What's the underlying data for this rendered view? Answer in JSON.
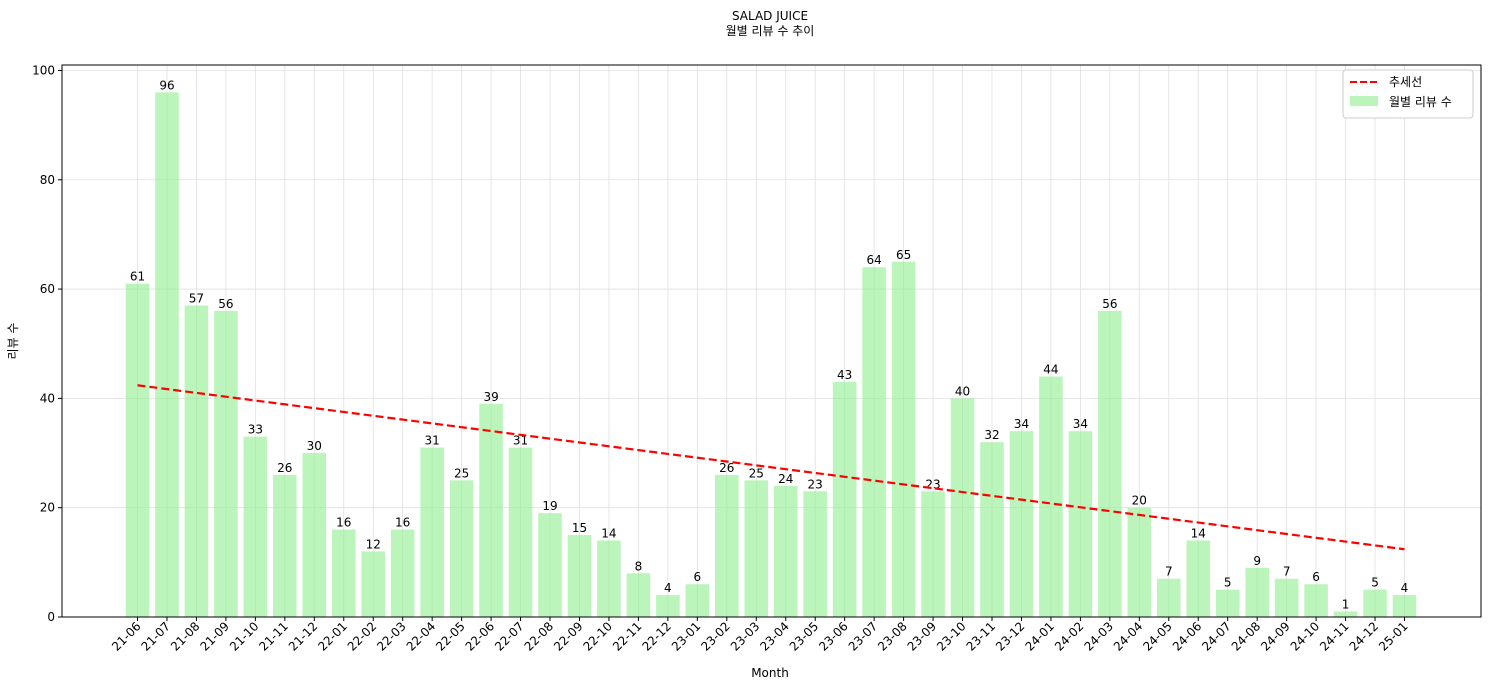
{
  "title_line1": "SALAD JUICE",
  "title_line2": "월별 리뷰 수 추이",
  "legend": {
    "trend_label": "추세선",
    "bar_label": "월별 리뷰 수",
    "placement": "top-right"
  },
  "colors": {
    "bar": "#90ee90",
    "trend": "#ff0000",
    "grid": "#e0e0e0"
  },
  "chart_data": {
    "type": "bar",
    "title": "SALAD JUICE\n월별 리뷰 수 추이",
    "xlabel": "Month",
    "ylabel": "리뷰 수",
    "ylim": [
      0,
      101
    ],
    "yticks": [
      0,
      20,
      40,
      60,
      80,
      100
    ],
    "grid": true,
    "categories": [
      "21-06",
      "21-07",
      "21-08",
      "21-09",
      "21-10",
      "21-11",
      "21-12",
      "22-01",
      "22-02",
      "22-03",
      "22-04",
      "22-05",
      "22-06",
      "22-07",
      "22-08",
      "22-09",
      "22-10",
      "22-11",
      "22-12",
      "23-01",
      "23-02",
      "23-03",
      "23-04",
      "23-05",
      "23-06",
      "23-07",
      "23-08",
      "23-09",
      "23-10",
      "23-11",
      "23-12",
      "24-01",
      "24-02",
      "24-03",
      "24-04",
      "24-05",
      "24-06",
      "24-07",
      "24-08",
      "24-09",
      "24-10",
      "24-11",
      "24-12",
      "25-01"
    ],
    "series": [
      {
        "name": "월별 리뷰 수",
        "type": "bar",
        "values": [
          61,
          96,
          57,
          56,
          33,
          26,
          30,
          16,
          12,
          16,
          31,
          25,
          39,
          31,
          19,
          15,
          14,
          8,
          4,
          6,
          26,
          25,
          24,
          23,
          43,
          64,
          65,
          23,
          40,
          32,
          34,
          44,
          34,
          56,
          20,
          7,
          14,
          5,
          9,
          7,
          6,
          1,
          5,
          4
        ]
      },
      {
        "name": "추세선",
        "type": "line",
        "style": "dashed",
        "start": 42.4,
        "end": 12.4
      }
    ]
  }
}
